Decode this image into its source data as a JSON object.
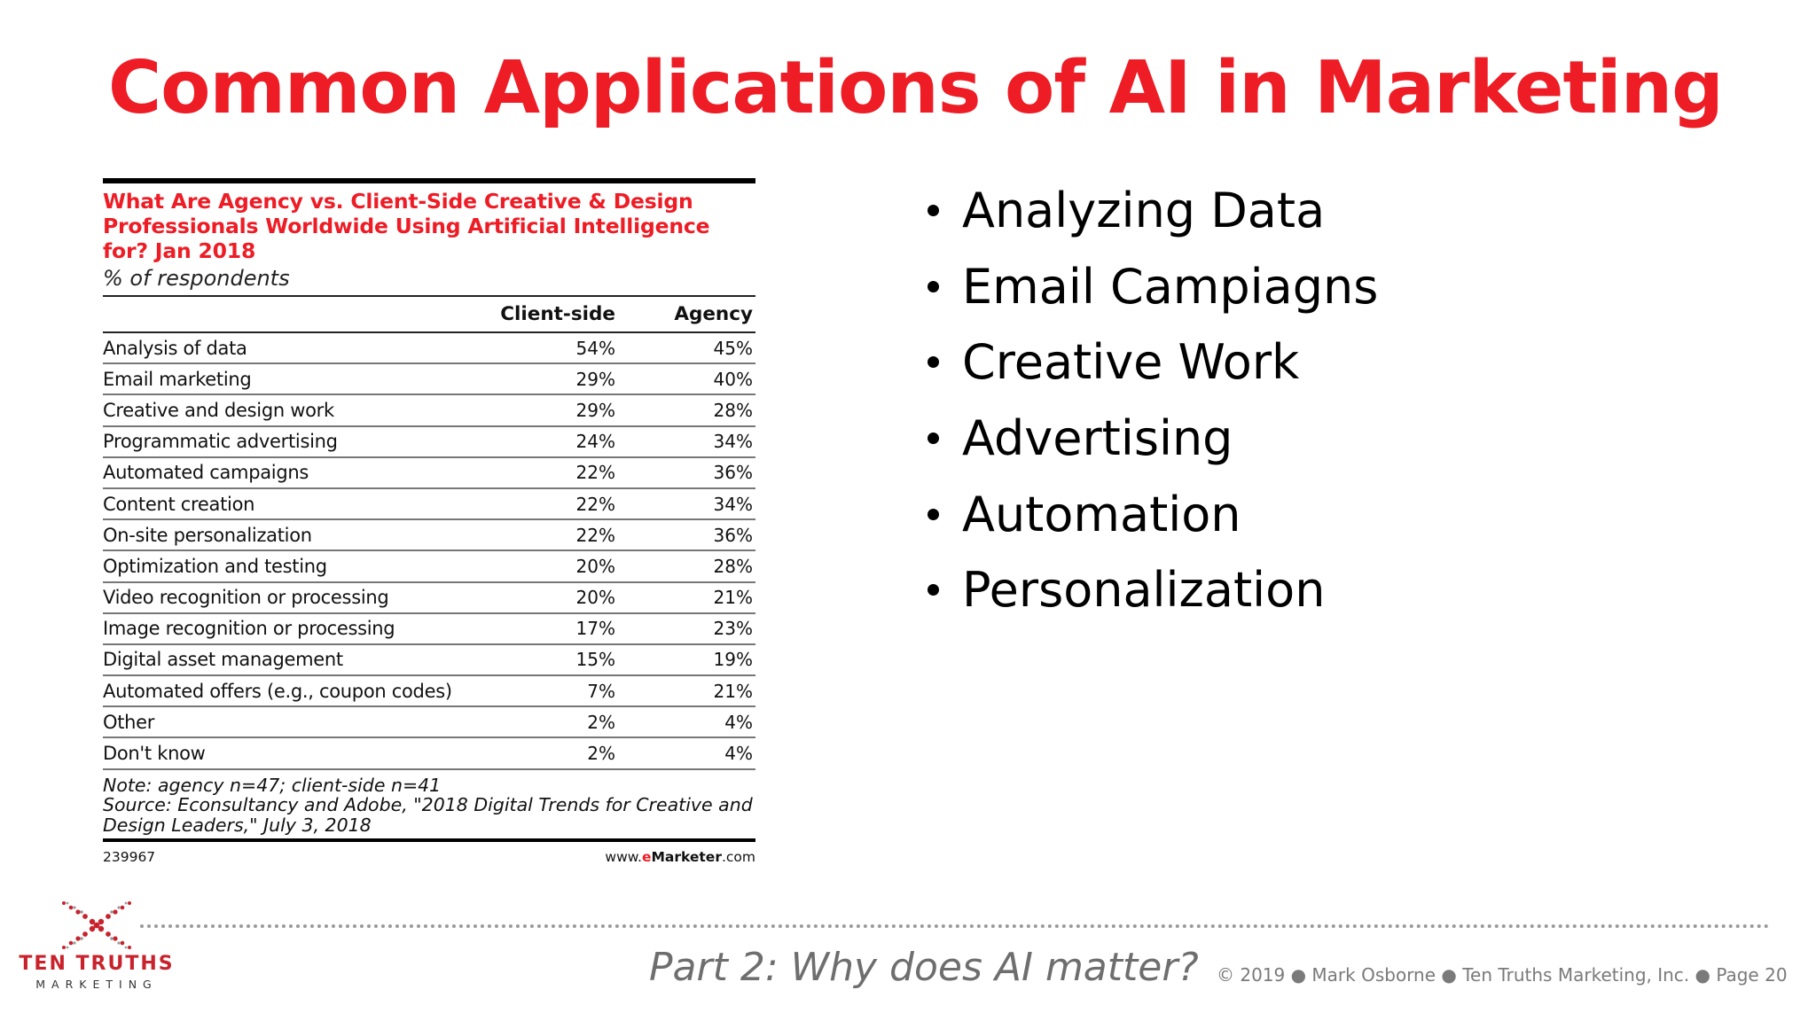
{
  "slide": {
    "title": "Common Applications of AI in Marketing"
  },
  "table": {
    "title_lines": [
      "What Are Agency vs. Client-Side Creative & Design",
      "Professionals Worldwide Using Artificial Intelligence",
      "for? Jan 2018"
    ],
    "subtitle": "% of respondents",
    "columns": [
      "",
      "Client-side",
      "Agency"
    ],
    "rows": [
      {
        "label": "Analysis of data",
        "client": "54%",
        "agency": "45%"
      },
      {
        "label": "Email marketing",
        "client": "29%",
        "agency": "40%"
      },
      {
        "label": "Creative and design work",
        "client": "29%",
        "agency": "28%"
      },
      {
        "label": "Programmatic advertising",
        "client": "24%",
        "agency": "34%"
      },
      {
        "label": "Automated campaigns",
        "client": "22%",
        "agency": "36%"
      },
      {
        "label": "Content creation",
        "client": "22%",
        "agency": "34%"
      },
      {
        "label": "On-site personalization",
        "client": "22%",
        "agency": "36%"
      },
      {
        "label": "Optimization and testing",
        "client": "20%",
        "agency": "28%"
      },
      {
        "label": "Video recognition or processing",
        "client": "20%",
        "agency": "21%"
      },
      {
        "label": "Image recognition or processing",
        "client": "17%",
        "agency": "23%"
      },
      {
        "label": "Digital asset management",
        "client": "15%",
        "agency": "19%"
      },
      {
        "label": "Automated offers (e.g., coupon codes)",
        "client": "7%",
        "agency": "21%"
      },
      {
        "label": "Other",
        "client": "2%",
        "agency": "4%"
      },
      {
        "label": "Don't know",
        "client": "2%",
        "agency": "4%"
      }
    ],
    "note_lines": [
      "Note: agency n=47; client-side n=41",
      "Source: Econsultancy and Adobe, \"2018 Digital Trends for Creative and",
      "Design Leaders,\" July 3, 2018"
    ],
    "chart_id": "239967",
    "source_site": {
      "prefix": "www.",
      "brand_red": "e",
      "brand_bold": "Marketer",
      "suffix": ".com"
    }
  },
  "bullets": [
    "Analyzing Data",
    "Email Campiagns",
    "Creative Work",
    "Advertising",
    "Automation",
    "Personalization"
  ],
  "footer": {
    "logo_name": "TEN TRUTHS",
    "logo_sub": "MARKETING",
    "logo_icon": "x-mark-icon",
    "part_label": "Part 2: Why does AI matter?",
    "copyright": "© 2019 ● Mark Osborne ● Ten Truths Marketing, Inc. ● Page 20"
  },
  "colors": {
    "accent_red": "#ee1c25",
    "logo_red": "#c8232c",
    "footer_gray": "#7a7a7a"
  }
}
